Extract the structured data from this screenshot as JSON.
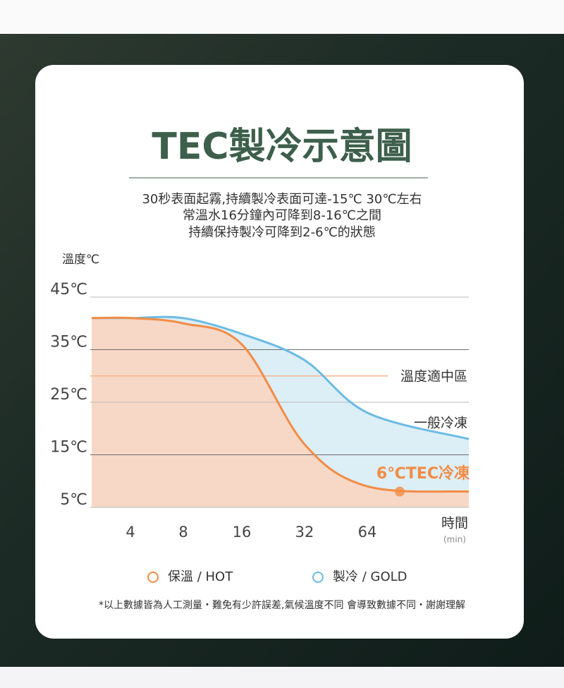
{
  "chart_data": {
    "type": "line",
    "title": "TEC製冷示意圖",
    "subtitle": [
      "30秒表面起霧,持續製冷表面可達-15℃ 30℃左右",
      "常溫水16分鐘內可降到8-16℃之間",
      "持續保持製冷可降到2-6℃的狀態"
    ],
    "y_label": "溫度℃",
    "x_label": "時間",
    "x_unit": "(min)",
    "categories": [
      null,
      4,
      8,
      16,
      32,
      64,
      null
    ],
    "series": [
      {
        "name": "保溫 / HOT",
        "color": "#f28c45",
        "fill": "#fbd2bd",
        "values": [
          41,
          41,
          40,
          36,
          17,
          9,
          8
        ],
        "end_label": "6℃TEC冷凍"
      },
      {
        "name": "製冷 / GOLD",
        "color": "#6bbbe3",
        "fill": "#d6ebf5",
        "values": [
          41,
          41,
          41,
          38,
          33,
          23,
          18
        ],
        "end_label": "一般冷凍"
      }
    ],
    "reference_line": {
      "value": 30,
      "label": "溫度適中區",
      "color": "#f6b58f"
    },
    "ylim": [
      5,
      45
    ],
    "yticks": [
      {
        "value": 5,
        "label": "5℃"
      },
      {
        "value": 15,
        "label": "15℃"
      },
      {
        "value": 25,
        "label": "25℃"
      },
      {
        "value": 35,
        "label": "35℃"
      },
      {
        "value": 45,
        "label": "45℃"
      }
    ],
    "grid": true,
    "footnote": "*以上數據皆為人工測量・難免有少許誤差,氣候溫度不同 會導致數據不同・謝謝理解"
  }
}
